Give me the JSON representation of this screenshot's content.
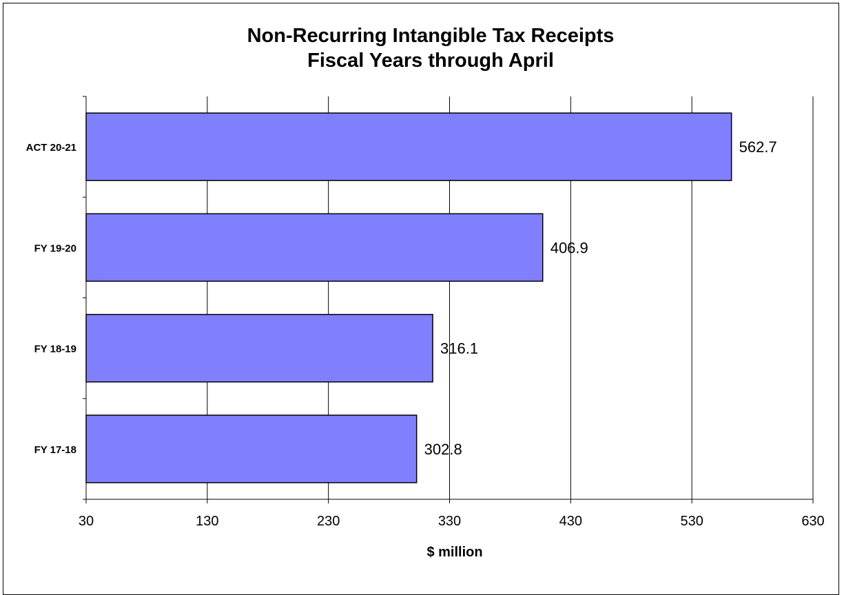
{
  "chart_data": {
    "type": "bar",
    "orientation": "horizontal",
    "title": "Non-Recurring Intangible Tax Receipts",
    "subtitle": "Fiscal Years through April",
    "categories": [
      "ACT 20-21",
      "FY 19-20",
      "FY 18-19",
      "FY 17-18"
    ],
    "values": [
      562.7,
      406.9,
      316.1,
      302.8
    ],
    "data_labels": [
      "562.7",
      "406.9",
      "316.1",
      "302.8"
    ],
    "xlabel": "$ million",
    "ylabel": "",
    "xlim": [
      30,
      630
    ],
    "xticks": [
      "30",
      "130",
      "230",
      "330",
      "430",
      "530",
      "630"
    ],
    "tick_values": [
      30,
      130,
      230,
      330,
      430,
      530,
      630
    ],
    "grid": "vertical",
    "legend": "none",
    "colors": {
      "bar_fill": "#8080ff",
      "bar_stroke": "#000000",
      "grid": "#000000",
      "background": "#ffffff"
    }
  }
}
